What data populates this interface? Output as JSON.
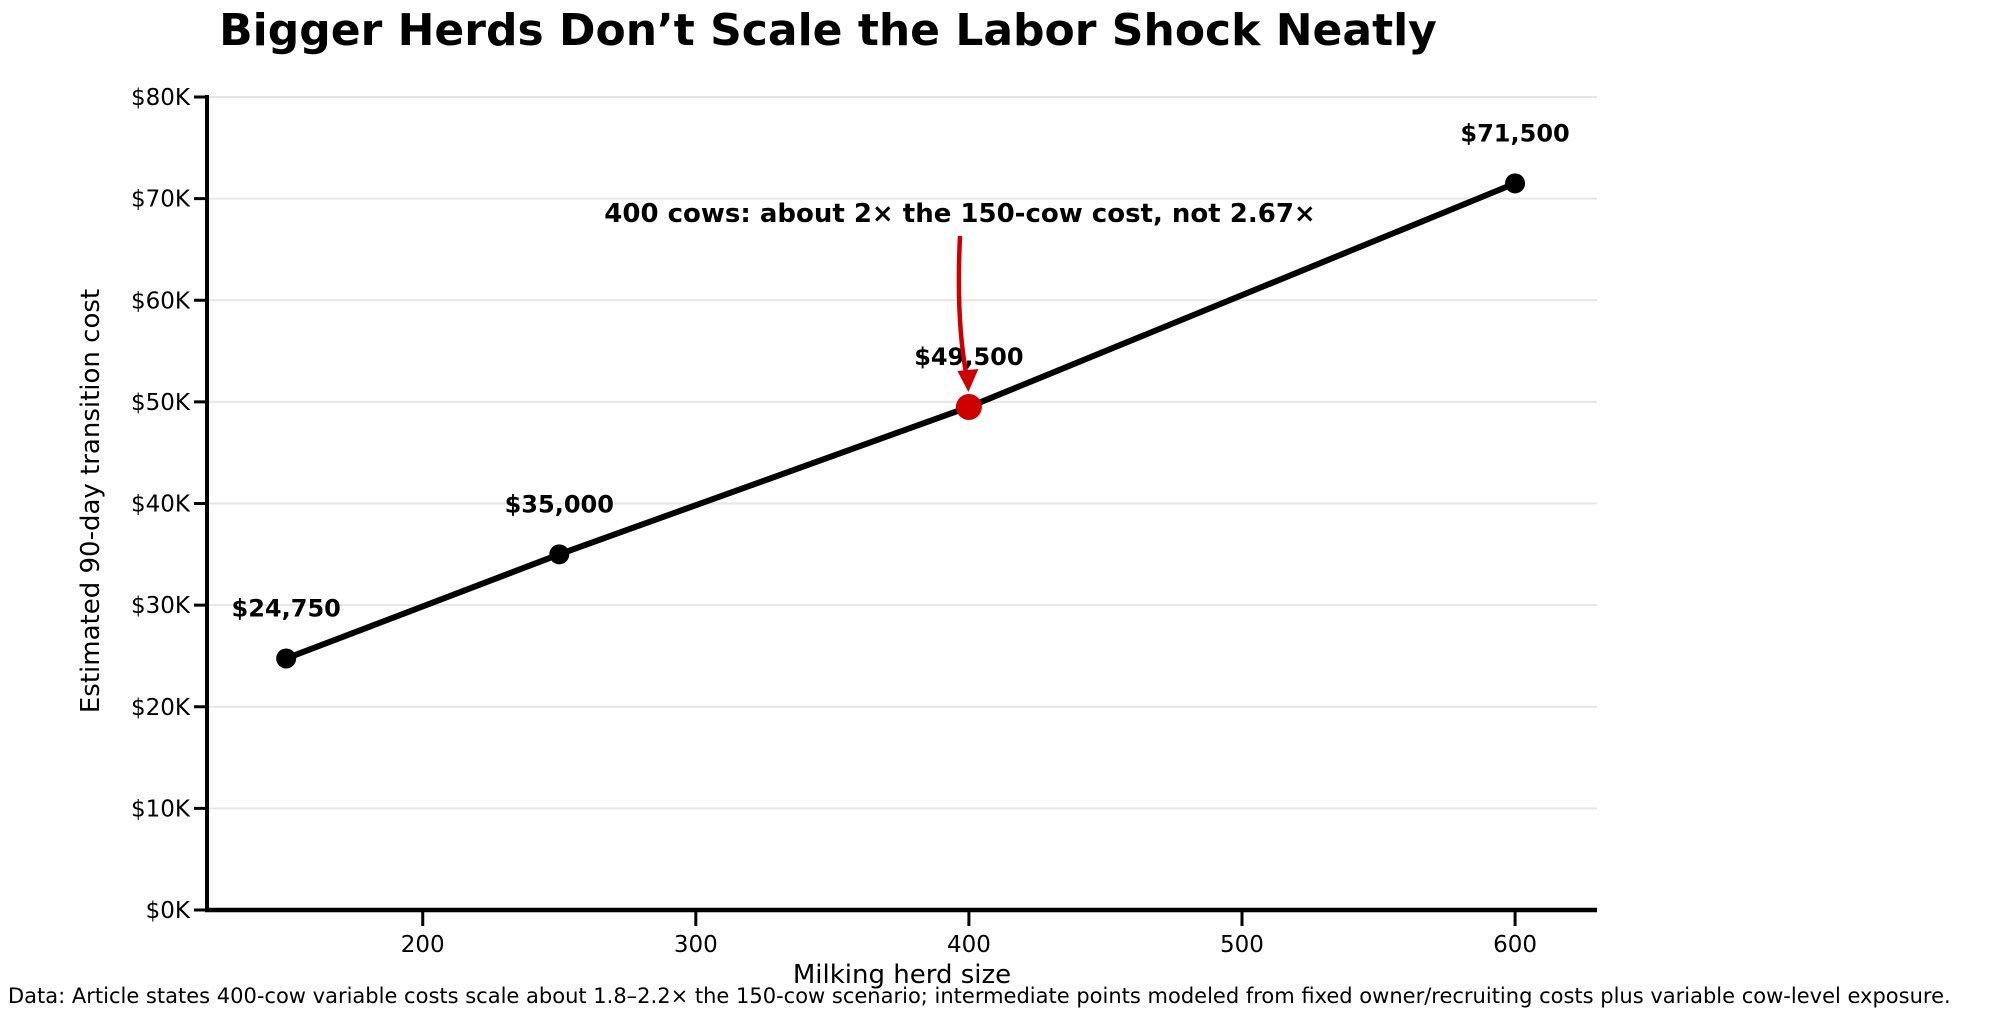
{
  "chart_data": {
    "type": "line",
    "title": "Bigger Herds Don’t Scale the Labor Shock Neatly",
    "xlabel": "Milking herd size",
    "ylabel": "Estimated 90-day transition cost",
    "x": [
      150,
      250,
      400,
      600
    ],
    "y": [
      24750,
      35000,
      49500,
      71500
    ],
    "point_labels": [
      "$24,750",
      "$35,000",
      "$49,500",
      "$71,500"
    ],
    "highlight_index": 2,
    "x_ticks": [
      200,
      300,
      400,
      500,
      600
    ],
    "y_ticks": [
      0,
      10000,
      20000,
      30000,
      40000,
      50000,
      60000,
      70000,
      80000
    ],
    "y_tick_labels": [
      "$0K",
      "$10K",
      "$20K",
      "$30K",
      "$40K",
      "$50K",
      "$60K",
      "$70K",
      "$80K"
    ],
    "xlim": [
      121,
      630
    ],
    "ylim": [
      0,
      80000
    ],
    "grid": "horizontal",
    "legend": "none",
    "annotation": {
      "text": "400 cows: about 2× the 150-cow cost, not 2.67×",
      "target_x": 400,
      "target_y": 49500
    },
    "colors": {
      "line": "#000000",
      "highlight": "#cc0000",
      "grid": "#e6e6e6",
      "footer_text": "#777777"
    }
  },
  "footer": {
    "text": "Data: Article states 400-cow variable costs scale about 1.8–2.2× the 150-cow scenario; intermediate points modeled from fixed owner/recruiting costs plus variable cow-level exposure."
  }
}
